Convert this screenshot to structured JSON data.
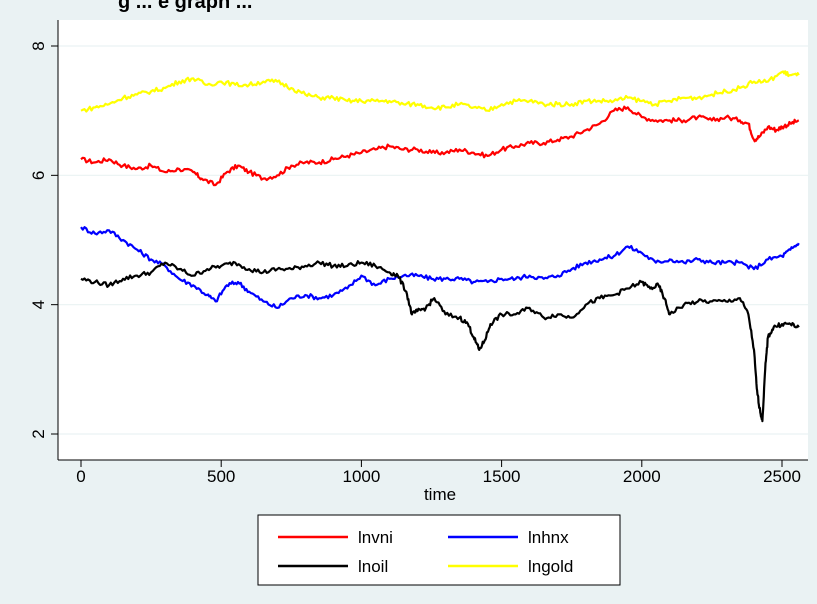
{
  "chart_data": {
    "type": "line",
    "title": "g ... e graph ...",
    "xlabel": "time",
    "ylabel": "",
    "xlim": [
      0,
      2560
    ],
    "ylim": [
      2,
      8
    ],
    "x_ticks": [
      0,
      500,
      1000,
      1500,
      2000,
      2500
    ],
    "y_ticks": [
      2,
      4,
      6,
      8
    ],
    "x_tick_labels": [
      "0",
      "500",
      "1000",
      "1500",
      "2000",
      "2500"
    ],
    "y_tick_labels": [
      "2",
      "4",
      "6",
      "8"
    ],
    "grid": true,
    "legend_position": "bottom",
    "series": [
      {
        "name": "lnvni",
        "color": "#ff0000",
        "x": [
          0,
          50,
          100,
          150,
          200,
          250,
          300,
          350,
          400,
          430,
          480,
          520,
          560,
          600,
          650,
          700,
          750,
          800,
          850,
          900,
          950,
          1000,
          1050,
          1100,
          1150,
          1200,
          1250,
          1300,
          1350,
          1400,
          1450,
          1500,
          1550,
          1600,
          1650,
          1700,
          1750,
          1800,
          1850,
          1900,
          1950,
          2000,
          2050,
          2100,
          2150,
          2200,
          2250,
          2300,
          2350,
          2380,
          2400,
          2420,
          2450,
          2480,
          2500,
          2530,
          2560
        ],
        "y": [
          6.25,
          6.2,
          6.25,
          6.15,
          6.1,
          6.15,
          6.05,
          6.1,
          6.05,
          5.95,
          5.85,
          6.05,
          6.15,
          6.05,
          5.95,
          6.0,
          6.15,
          6.2,
          6.2,
          6.25,
          6.3,
          6.35,
          6.4,
          6.45,
          6.4,
          6.4,
          6.35,
          6.35,
          6.4,
          6.35,
          6.3,
          6.4,
          6.45,
          6.5,
          6.5,
          6.55,
          6.6,
          6.7,
          6.8,
          7.0,
          7.05,
          6.9,
          6.85,
          6.85,
          6.85,
          6.9,
          6.85,
          6.9,
          6.85,
          6.8,
          6.55,
          6.6,
          6.75,
          6.7,
          6.75,
          6.8,
          6.85
        ]
      },
      {
        "name": "lnhnx",
        "color": "#0000ff",
        "x": [
          0,
          50,
          100,
          150,
          200,
          250,
          300,
          350,
          400,
          450,
          480,
          520,
          560,
          600,
          650,
          700,
          750,
          800,
          850,
          900,
          950,
          1000,
          1050,
          1100,
          1150,
          1200,
          1250,
          1300,
          1350,
          1400,
          1450,
          1500,
          1550,
          1600,
          1650,
          1700,
          1750,
          1800,
          1850,
          1900,
          1950,
          2000,
          2050,
          2100,
          2150,
          2200,
          2250,
          2300,
          2350,
          2400,
          2450,
          2500,
          2530,
          2560
        ],
        "y": [
          5.2,
          5.1,
          5.15,
          5.0,
          4.85,
          4.7,
          4.6,
          4.4,
          4.3,
          4.15,
          4.05,
          4.3,
          4.35,
          4.2,
          4.05,
          3.95,
          4.1,
          4.15,
          4.1,
          4.15,
          4.25,
          4.45,
          4.3,
          4.4,
          4.45,
          4.45,
          4.4,
          4.4,
          4.4,
          4.35,
          4.35,
          4.4,
          4.4,
          4.45,
          4.4,
          4.45,
          4.55,
          4.65,
          4.7,
          4.75,
          4.9,
          4.8,
          4.65,
          4.7,
          4.65,
          4.7,
          4.65,
          4.65,
          4.65,
          4.55,
          4.7,
          4.75,
          4.85,
          4.95
        ]
      },
      {
        "name": "lnoil",
        "color": "#000000",
        "x": [
          0,
          50,
          100,
          150,
          200,
          250,
          300,
          350,
          400,
          450,
          500,
          550,
          600,
          650,
          700,
          750,
          800,
          850,
          900,
          950,
          1000,
          1050,
          1100,
          1130,
          1160,
          1180,
          1200,
          1230,
          1260,
          1300,
          1350,
          1380,
          1400,
          1420,
          1440,
          1460,
          1500,
          1550,
          1600,
          1650,
          1700,
          1750,
          1800,
          1850,
          1900,
          1950,
          2000,
          2030,
          2060,
          2080,
          2100,
          2150,
          2200,
          2250,
          2300,
          2350,
          2380,
          2400,
          2410,
          2420,
          2430,
          2440,
          2450,
          2470,
          2500,
          2530,
          2560
        ],
        "y": [
          4.4,
          4.35,
          4.3,
          4.4,
          4.45,
          4.5,
          4.65,
          4.55,
          4.45,
          4.55,
          4.6,
          4.65,
          4.55,
          4.5,
          4.55,
          4.55,
          4.6,
          4.65,
          4.6,
          4.6,
          4.65,
          4.6,
          4.5,
          4.45,
          4.2,
          3.85,
          3.9,
          3.95,
          4.1,
          3.85,
          3.8,
          3.7,
          3.5,
          3.3,
          3.45,
          3.7,
          3.85,
          3.85,
          3.95,
          3.8,
          3.85,
          3.8,
          4.0,
          4.1,
          4.15,
          4.25,
          4.35,
          4.25,
          4.3,
          4.1,
          3.85,
          4.0,
          4.05,
          4.05,
          4.05,
          4.1,
          3.85,
          3.3,
          2.7,
          2.4,
          2.2,
          3.0,
          3.5,
          3.65,
          3.7,
          3.7,
          3.65
        ]
      },
      {
        "name": "lngold",
        "color": "#ffff00",
        "x": [
          0,
          50,
          100,
          150,
          200,
          250,
          300,
          350,
          400,
          450,
          500,
          550,
          600,
          650,
          700,
          750,
          800,
          850,
          900,
          950,
          1000,
          1050,
          1100,
          1150,
          1200,
          1250,
          1300,
          1350,
          1400,
          1450,
          1500,
          1550,
          1600,
          1650,
          1700,
          1750,
          1800,
          1850,
          1900,
          1950,
          2000,
          2050,
          2100,
          2150,
          2200,
          2250,
          2300,
          2350,
          2400,
          2450,
          2500,
          2530,
          2560
        ],
        "y": [
          7.0,
          7.05,
          7.1,
          7.2,
          7.25,
          7.3,
          7.35,
          7.45,
          7.5,
          7.4,
          7.45,
          7.4,
          7.4,
          7.45,
          7.45,
          7.35,
          7.25,
          7.2,
          7.2,
          7.15,
          7.15,
          7.15,
          7.15,
          7.1,
          7.1,
          7.05,
          7.05,
          7.1,
          7.05,
          7.0,
          7.1,
          7.15,
          7.15,
          7.1,
          7.1,
          7.1,
          7.15,
          7.15,
          7.15,
          7.2,
          7.15,
          7.1,
          7.15,
          7.2,
          7.2,
          7.25,
          7.3,
          7.35,
          7.45,
          7.45,
          7.6,
          7.55,
          7.55
        ]
      }
    ]
  }
}
